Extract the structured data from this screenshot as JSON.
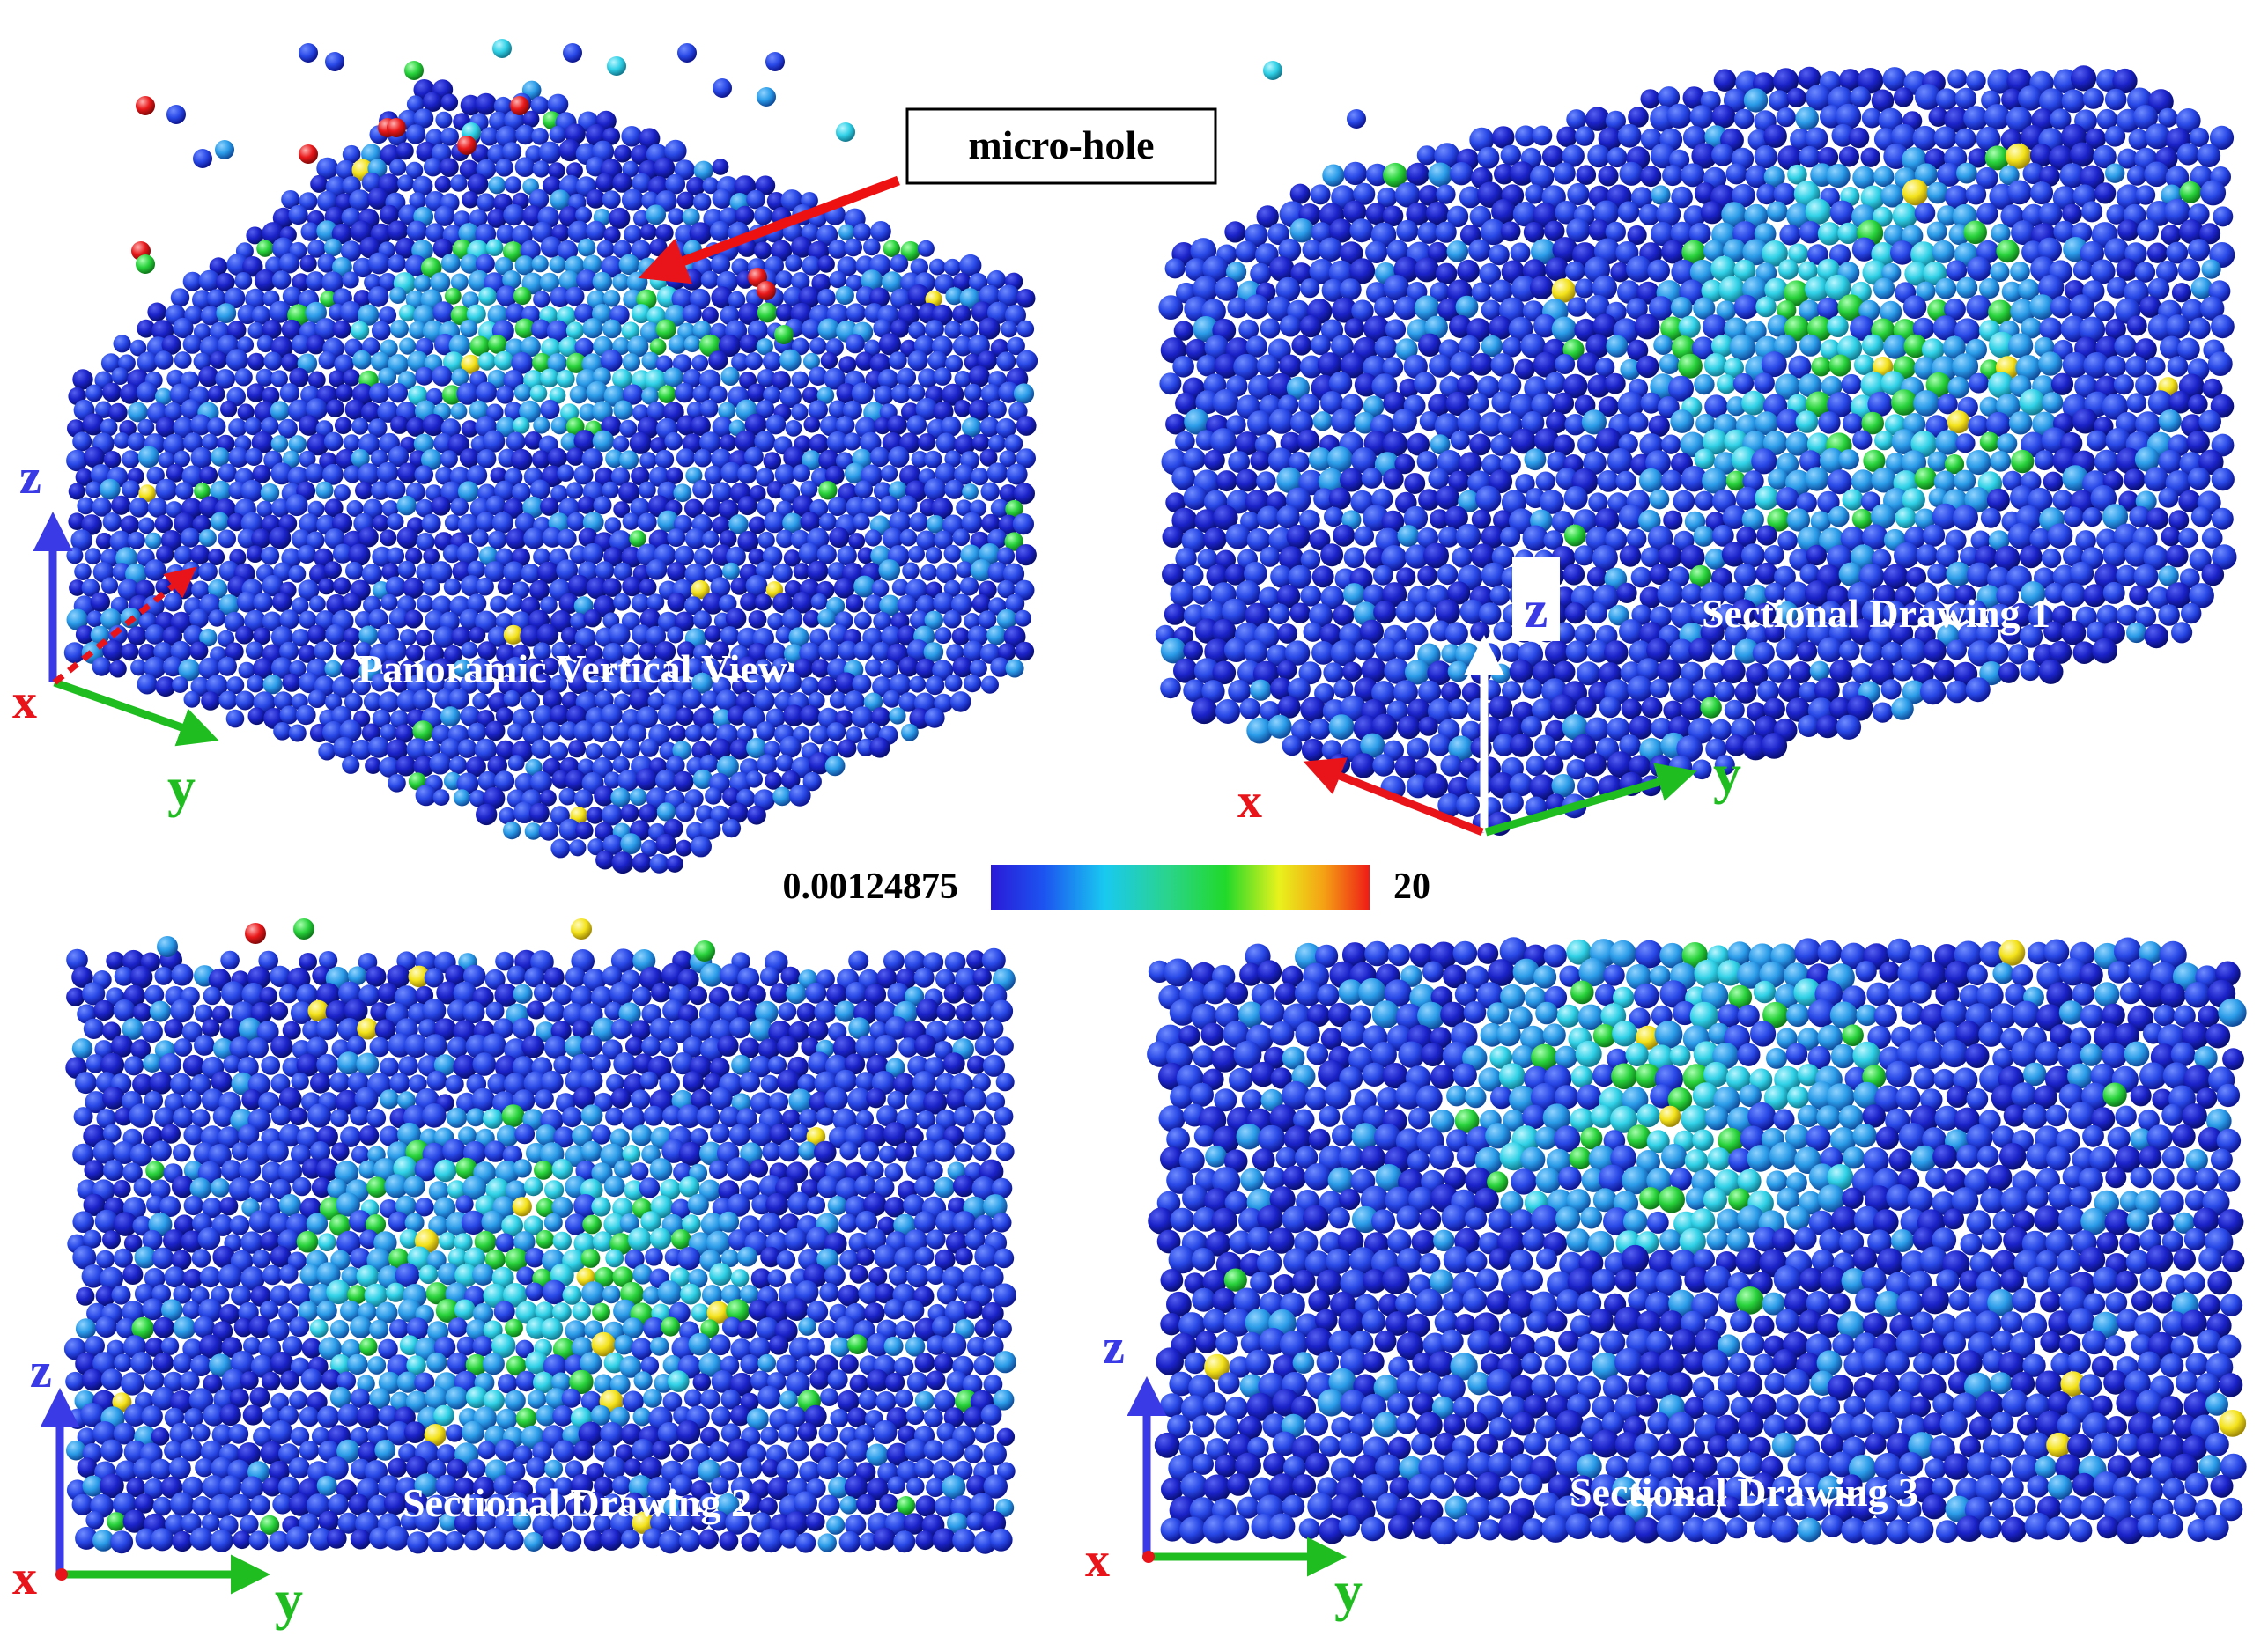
{
  "figure": {
    "panels": [
      {
        "id": "panoramic",
        "label": "Panoramic Vertical View"
      },
      {
        "id": "section1",
        "label": "Sectional Drawing 1"
      },
      {
        "id": "section2",
        "label": "Sectional Drawing 2"
      },
      {
        "id": "section3",
        "label": "Sectional Drawing 3"
      }
    ],
    "callout": {
      "label": "micro-hole",
      "arrow_color": "#ee1111"
    },
    "colorbar": {
      "min_label": "0.00124875",
      "max_label": "20",
      "stops": [
        "#2a1ad8",
        "#1c54f0",
        "#19c9f0",
        "#2ad48a",
        "#21d92a",
        "#e8f21c",
        "#f5a014",
        "#ee1b16"
      ]
    },
    "axes": {
      "x": "x",
      "y": "y",
      "z": "z",
      "colors": {
        "x": "#e8141a",
        "y": "#1fbd1f",
        "z": "#3a3ae6",
        "white": "#ffffff"
      }
    },
    "particle_colors": {
      "deep": "#1a22c8",
      "base": "#2848e6",
      "mid": "#2a9be8",
      "cyan": "#2fd0e6",
      "green": "#28d23c",
      "yellow": "#f3e21a",
      "red": "#e8181a"
    }
  }
}
